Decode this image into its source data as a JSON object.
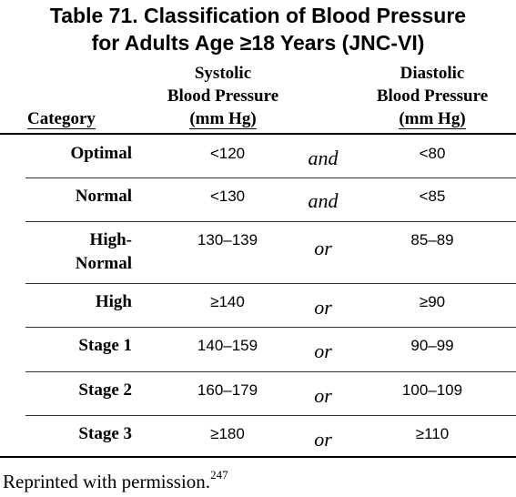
{
  "title": {
    "line1": "Table 71. Classification of Blood Pressure",
    "line2": "for Adults Age ≥18 Years (JNC-VI)"
  },
  "headers": {
    "category": "Category",
    "systolic": [
      "Systolic",
      "Blood Pressure",
      "(mm Hg)"
    ],
    "diastolic": [
      "Diastolic",
      "Blood Pressure",
      "(mm Hg)"
    ]
  },
  "rows": [
    {
      "category": [
        "Optimal"
      ],
      "systolic": "<120",
      "conjunction": "and",
      "diastolic": "<80"
    },
    {
      "category": [
        "Normal"
      ],
      "systolic": "<130",
      "conjunction": "and",
      "diastolic": "<85"
    },
    {
      "category": [
        "High-",
        "Normal"
      ],
      "systolic": "130–139",
      "conjunction": "or",
      "diastolic": "85–89"
    },
    {
      "category": [
        "High"
      ],
      "systolic": "≥140",
      "conjunction": "or",
      "diastolic": "≥90"
    },
    {
      "category": [
        "Stage 1"
      ],
      "systolic": "140–159",
      "conjunction": "or",
      "diastolic": "90–99"
    },
    {
      "category": [
        "Stage 2"
      ],
      "systolic": "160–179",
      "conjunction": "or",
      "diastolic": "100–109"
    },
    {
      "category": [
        "Stage 3"
      ],
      "systolic": "≥180",
      "conjunction": "or",
      "diastolic": "≥110"
    }
  ],
  "footnote": {
    "text": "Reprinted with permission.",
    "ref": "247"
  }
}
